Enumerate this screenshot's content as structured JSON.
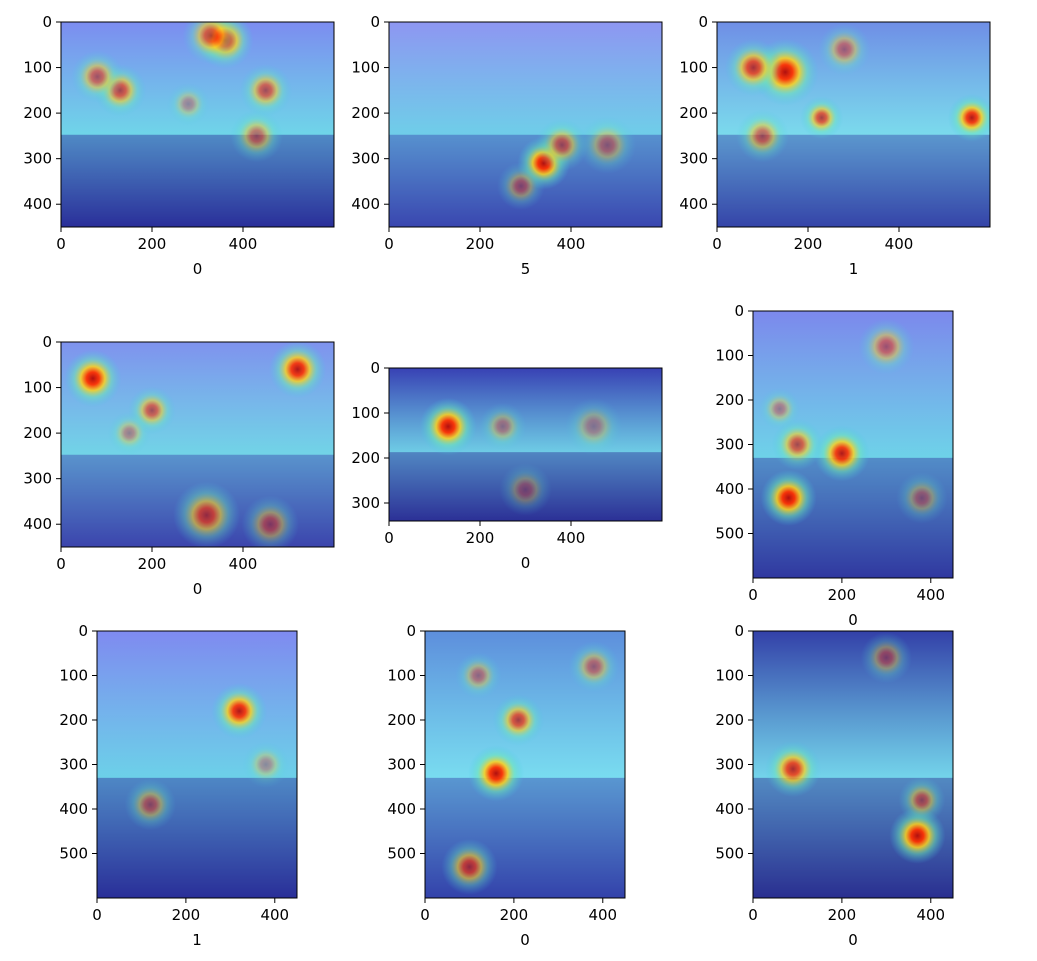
{
  "chart_data": [
    {
      "type": "heatmap",
      "xlabel": "0",
      "xticks": [
        0,
        200,
        400
      ],
      "yticks": [
        0,
        100,
        200,
        300,
        400
      ],
      "xlim": [
        0,
        600
      ],
      "ylim": [
        0,
        450
      ],
      "palette": {
        "sky": "#7c8cf0",
        "ground": "#2a2f9a",
        "accent": "#5fd0e6"
      },
      "hotspots": [
        {
          "x": 360,
          "y": 40,
          "r": 60,
          "i": 0.95
        },
        {
          "x": 330,
          "y": 30,
          "r": 60,
          "i": 0.7
        },
        {
          "x": 130,
          "y": 150,
          "r": 55,
          "i": 0.7
        },
        {
          "x": 80,
          "y": 120,
          "r": 55,
          "i": 0.6
        },
        {
          "x": 450,
          "y": 150,
          "r": 55,
          "i": 0.65
        },
        {
          "x": 430,
          "y": 250,
          "r": 55,
          "i": 0.55
        },
        {
          "x": 280,
          "y": 180,
          "r": 45,
          "i": 0.35
        }
      ]
    },
    {
      "type": "heatmap",
      "xlabel": "5",
      "xticks": [
        0,
        200,
        400
      ],
      "yticks": [
        0,
        100,
        200,
        300,
        400
      ],
      "xlim": [
        0,
        600
      ],
      "ylim": [
        0,
        450
      ],
      "palette": {
        "sky": "#8e96f2",
        "ground": "#3a46b0",
        "accent": "#5fc8e6"
      },
      "hotspots": [
        {
          "x": 340,
          "y": 310,
          "r": 55,
          "i": 1.0
        },
        {
          "x": 380,
          "y": 270,
          "r": 55,
          "i": 0.6
        },
        {
          "x": 480,
          "y": 270,
          "r": 60,
          "i": 0.45
        },
        {
          "x": 290,
          "y": 360,
          "r": 50,
          "i": 0.45
        }
      ]
    },
    {
      "type": "heatmap",
      "xlabel": "1",
      "xticks": [
        0,
        200,
        400
      ],
      "yticks": [
        0,
        100,
        200,
        300,
        400
      ],
      "xlim": [
        0,
        600
      ],
      "ylim": [
        0,
        450
      ],
      "palette": {
        "sky": "#6f8ee6",
        "ground": "#3544a8",
        "accent": "#6cd6ea"
      },
      "hotspots": [
        {
          "x": 150,
          "y": 110,
          "r": 70,
          "i": 1.0
        },
        {
          "x": 80,
          "y": 100,
          "r": 60,
          "i": 0.8
        },
        {
          "x": 560,
          "y": 210,
          "r": 50,
          "i": 0.95
        },
        {
          "x": 230,
          "y": 210,
          "r": 45,
          "i": 0.75
        },
        {
          "x": 100,
          "y": 250,
          "r": 55,
          "i": 0.6
        },
        {
          "x": 280,
          "y": 60,
          "r": 55,
          "i": 0.5
        }
      ]
    },
    {
      "type": "heatmap",
      "xlabel": "0",
      "xticks": [
        0,
        200,
        400
      ],
      "yticks": [
        0,
        100,
        200,
        300,
        400
      ],
      "xlim": [
        0,
        600
      ],
      "ylim": [
        0,
        450
      ],
      "palette": {
        "sky": "#7f92ee",
        "ground": "#3b44ac",
        "accent": "#62cfe4"
      },
      "hotspots": [
        {
          "x": 70,
          "y": 80,
          "r": 60,
          "i": 1.0
        },
        {
          "x": 520,
          "y": 60,
          "r": 60,
          "i": 0.95
        },
        {
          "x": 200,
          "y": 150,
          "r": 50,
          "i": 0.65
        },
        {
          "x": 320,
          "y": 380,
          "r": 70,
          "i": 0.7
        },
        {
          "x": 460,
          "y": 400,
          "r": 60,
          "i": 0.5
        },
        {
          "x": 150,
          "y": 200,
          "r": 45,
          "i": 0.4
        }
      ]
    },
    {
      "type": "heatmap",
      "xlabel": "0",
      "xticks": [
        0,
        200,
        400
      ],
      "yticks": [
        0,
        100,
        200,
        300
      ],
      "xlim": [
        0,
        600
      ],
      "ylim": [
        0,
        340
      ],
      "palette": {
        "sky": "#3841b4",
        "ground": "#2c3096",
        "accent": "#5ec6e2"
      },
      "hotspots": [
        {
          "x": 130,
          "y": 130,
          "r": 60,
          "i": 1.0
        },
        {
          "x": 250,
          "y": 130,
          "r": 50,
          "i": 0.4
        },
        {
          "x": 450,
          "y": 130,
          "r": 60,
          "i": 0.35
        },
        {
          "x": 300,
          "y": 270,
          "r": 55,
          "i": 0.35
        }
      ]
    },
    {
      "type": "heatmap",
      "xlabel": "0",
      "xticks": [
        0,
        200,
        400
      ],
      "yticks": [
        0,
        100,
        200,
        300,
        400,
        500
      ],
      "xlim": [
        0,
        450
      ],
      "ylim": [
        0,
        600
      ],
      "palette": {
        "sky": "#7c88ec",
        "ground": "#3038a0",
        "accent": "#5ecde6"
      },
      "hotspots": [
        {
          "x": 80,
          "y": 420,
          "r": 60,
          "i": 1.0
        },
        {
          "x": 200,
          "y": 320,
          "r": 60,
          "i": 0.95
        },
        {
          "x": 100,
          "y": 300,
          "r": 55,
          "i": 0.7
        },
        {
          "x": 300,
          "y": 80,
          "r": 60,
          "i": 0.55
        },
        {
          "x": 380,
          "y": 420,
          "r": 55,
          "i": 0.4
        },
        {
          "x": 60,
          "y": 220,
          "r": 45,
          "i": 0.4
        }
      ]
    },
    {
      "type": "heatmap",
      "xlabel": "1",
      "xticks": [
        0,
        200,
        400
      ],
      "yticks": [
        0,
        100,
        200,
        300,
        400,
        500
      ],
      "xlim": [
        0,
        450
      ],
      "ylim": [
        0,
        600
      ],
      "palette": {
        "sky": "#7f8af0",
        "ground": "#2a2f98",
        "accent": "#5ccbe6"
      },
      "hotspots": [
        {
          "x": 320,
          "y": 180,
          "r": 60,
          "i": 0.95
        },
        {
          "x": 120,
          "y": 390,
          "r": 55,
          "i": 0.5
        },
        {
          "x": 380,
          "y": 300,
          "r": 50,
          "i": 0.35
        }
      ]
    },
    {
      "type": "heatmap",
      "xlabel": "0",
      "xticks": [
        0,
        200,
        400
      ],
      "yticks": [
        0,
        100,
        200,
        300,
        400,
        500
      ],
      "xlim": [
        0,
        450
      ],
      "ylim": [
        0,
        600
      ],
      "palette": {
        "sky": "#5d8edc",
        "ground": "#3442aa",
        "accent": "#6ad8ee"
      },
      "hotspots": [
        {
          "x": 160,
          "y": 320,
          "r": 60,
          "i": 1.0
        },
        {
          "x": 210,
          "y": 200,
          "r": 55,
          "i": 0.75
        },
        {
          "x": 100,
          "y": 530,
          "r": 60,
          "i": 0.7
        },
        {
          "x": 380,
          "y": 80,
          "r": 55,
          "i": 0.5
        },
        {
          "x": 120,
          "y": 100,
          "r": 50,
          "i": 0.45
        }
      ]
    },
    {
      "type": "heatmap",
      "xlabel": "0",
      "xticks": [
        0,
        200,
        400
      ],
      "yticks": [
        0,
        100,
        200,
        300,
        400,
        500
      ],
      "xlim": [
        0,
        450
      ],
      "ylim": [
        0,
        600
      ],
      "palette": {
        "sky": "#3340a8",
        "ground": "#2a2f90",
        "accent": "#64cfe8"
      },
      "hotspots": [
        {
          "x": 370,
          "y": 460,
          "r": 60,
          "i": 1.0
        },
        {
          "x": 90,
          "y": 310,
          "r": 60,
          "i": 0.85
        },
        {
          "x": 380,
          "y": 380,
          "r": 50,
          "i": 0.55
        },
        {
          "x": 300,
          "y": 60,
          "r": 55,
          "i": 0.45
        }
      ]
    }
  ]
}
